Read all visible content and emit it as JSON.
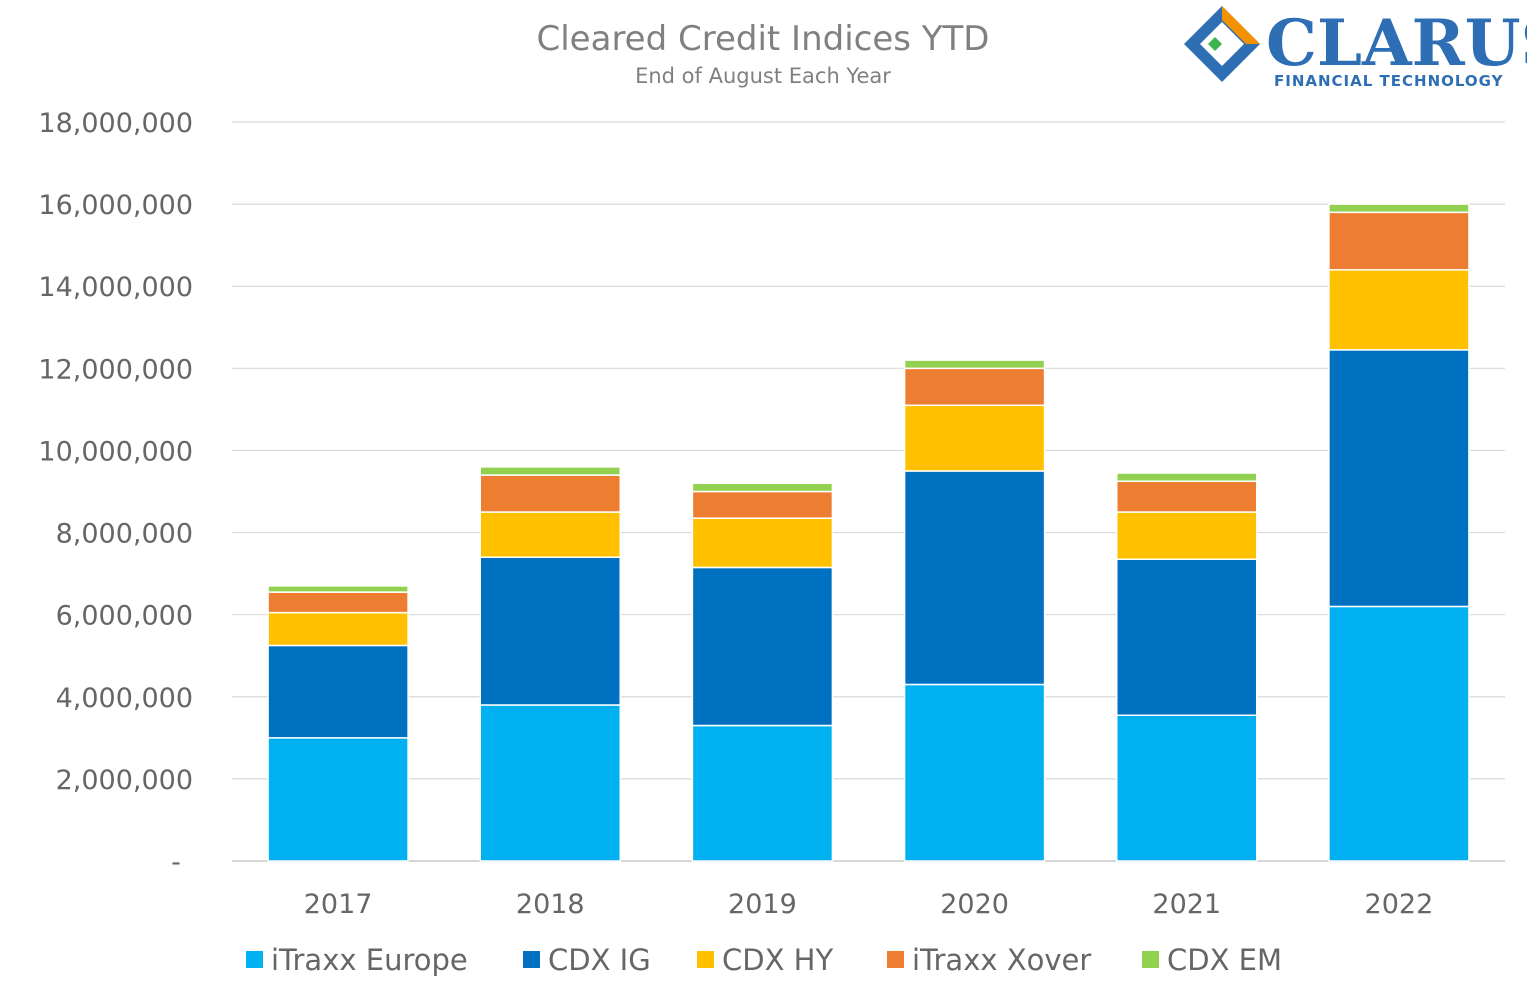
{
  "chart_data": {
    "type": "bar",
    "stacked": true,
    "title": "Cleared Credit Indices YTD",
    "subtitle": "End of August Each Year",
    "categories": [
      "2017",
      "2018",
      "2019",
      "2020",
      "2021",
      "2022"
    ],
    "series": [
      {
        "name": "iTraxx Europe",
        "color": "#00b0f0",
        "values": [
          3000000,
          3800000,
          3300000,
          4300000,
          3550000,
          6200000
        ]
      },
      {
        "name": "CDX IG",
        "color": "#0070c0",
        "values": [
          2250000,
          3600000,
          3850000,
          5200000,
          3800000,
          6250000
        ]
      },
      {
        "name": "CDX HY",
        "color": "#ffc000",
        "values": [
          800000,
          1100000,
          1200000,
          1600000,
          1150000,
          1950000
        ]
      },
      {
        "name": "iTraxx Xover",
        "color": "#ed7d31",
        "values": [
          500000,
          900000,
          650000,
          900000,
          750000,
          1400000
        ]
      },
      {
        "name": "CDX EM",
        "color": "#92d050",
        "values": [
          150000,
          200000,
          200000,
          200000,
          200000,
          200000
        ]
      }
    ],
    "ylim": [
      0,
      18000000
    ],
    "yticks": [
      0,
      2000000,
      4000000,
      6000000,
      8000000,
      10000000,
      12000000,
      14000000,
      16000000,
      18000000
    ],
    "ytick_labels": [
      "-",
      "2,000,000",
      "4,000,000",
      "6,000,000",
      "8,000,000",
      "10,000,000",
      "12,000,000",
      "14,000,000",
      "16,000,000",
      "18,000,000"
    ],
    "grid": true,
    "legend_position": "bottom"
  },
  "logo": {
    "name": "CLARUS",
    "tagline": "FINANCIAL TECHNOLOGY",
    "icon": "clarus-diamond-logo-icon"
  }
}
